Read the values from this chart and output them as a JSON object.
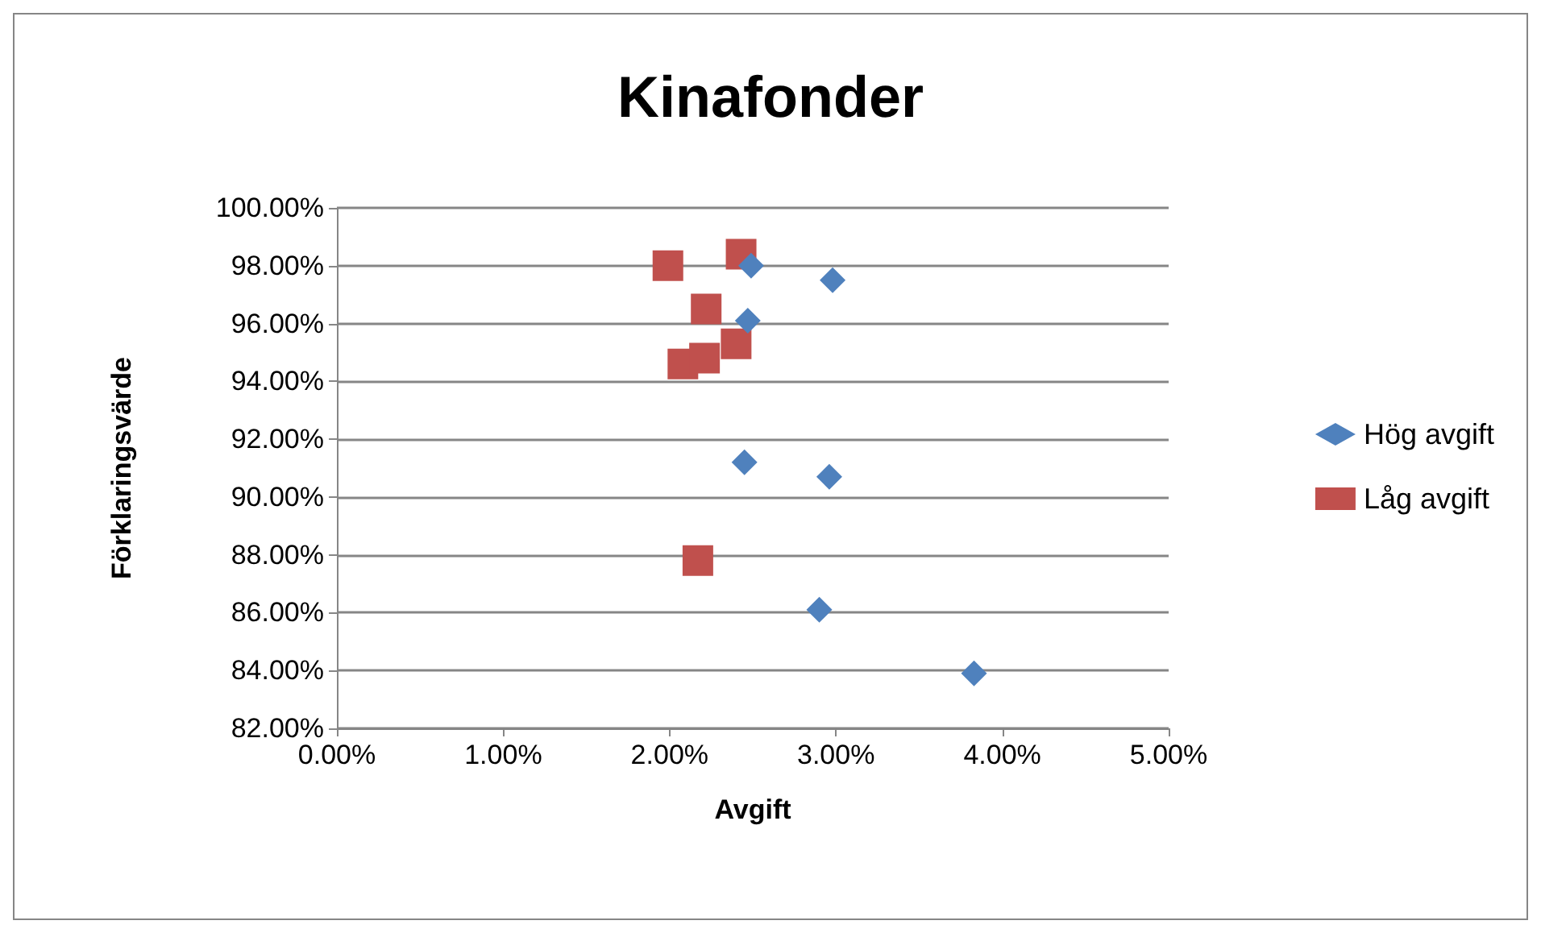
{
  "chart_data": {
    "type": "scatter",
    "title": "Kinafonder",
    "xlabel": "Avgift",
    "ylabel": "Förklaringsvärde",
    "xlim": [
      0,
      5
    ],
    "xticks": [
      {
        "value": 0,
        "label": "0.00%"
      },
      {
        "value": 1,
        "label": "1.00%"
      },
      {
        "value": 2,
        "label": "2.00%"
      },
      {
        "value": 3,
        "label": "3.00%"
      },
      {
        "value": 4,
        "label": "4.00%"
      },
      {
        "value": 5,
        "label": "5.00%"
      }
    ],
    "ylim": [
      82,
      100
    ],
    "yticks": [
      {
        "value": 82,
        "label": "82.00%"
      },
      {
        "value": 84,
        "label": "84.00%"
      },
      {
        "value": 86,
        "label": "86.00%"
      },
      {
        "value": 88,
        "label": "88.00%"
      },
      {
        "value": 90,
        "label": "90.00%"
      },
      {
        "value": 92,
        "label": "92.00%"
      },
      {
        "value": 94,
        "label": "94.00%"
      },
      {
        "value": 96,
        "label": "96.00%"
      },
      {
        "value": 98,
        "label": "98.00%"
      },
      {
        "value": 100,
        "label": "100.00%"
      }
    ],
    "grid": "y",
    "legend": "right",
    "series": [
      {
        "name": "Hög avgift",
        "color": "#4f81bd",
        "marker": "diamond",
        "x": [
          2.49,
          2.98,
          2.47,
          2.45,
          2.96,
          2.9,
          3.83
        ],
        "values": [
          98.0,
          97.5,
          96.1,
          91.2,
          90.7,
          86.1,
          83.9
        ]
      },
      {
        "name": "Låg avgift",
        "color": "#c0504d",
        "marker": "square",
        "x": [
          1.99,
          2.43,
          2.22,
          2.08,
          2.21,
          2.4,
          2.17
        ],
        "values": [
          98.0,
          98.4,
          96.5,
          94.6,
          94.8,
          95.3,
          87.8
        ]
      }
    ]
  }
}
